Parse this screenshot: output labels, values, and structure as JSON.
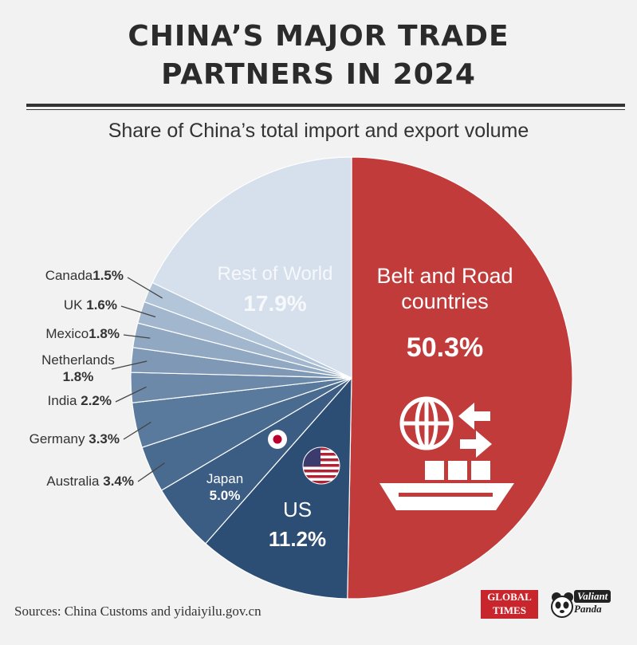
{
  "title_line1": "CHINA’S MAJOR TRADE",
  "title_line2": "PARTNERS IN 2024",
  "subtitle": "Share of China’s total import and export volume",
  "source": "Sources: China Customs and yidaiyilu.gov.cn",
  "logos": {
    "global_times_line1": "GLOBAL",
    "global_times_line2": "TIMES",
    "valiant_panda_line1": "Valiant",
    "valiant_panda_line2": "Panda"
  },
  "chart_data": {
    "type": "pie",
    "title": "CHINA’S MAJOR TRADE PARTNERS IN 2024",
    "subtitle": "Share of China’s total import and export volume",
    "unit": "%",
    "slices": [
      {
        "name": "Belt and Road countries",
        "value": 50.3,
        "label": "50.3%",
        "color": "#c23b3b"
      },
      {
        "name": "US",
        "value": 11.2,
        "label": "11.2%",
        "color": "#2d4e74"
      },
      {
        "name": "Japan",
        "value": 5.0,
        "label": "5.0%",
        "color": "#3b5d83"
      },
      {
        "name": "Australia",
        "value": 3.4,
        "label": "3.4%",
        "color": "#4a6b90"
      },
      {
        "name": "Germany",
        "value": 3.3,
        "label": "3.3%",
        "color": "#5a7a9d"
      },
      {
        "name": "India",
        "value": 2.2,
        "label": "2.2%",
        "color": "#6c89aa"
      },
      {
        "name": "Netherlands",
        "value": 1.8,
        "label": "1.8%",
        "color": "#7e98b6"
      },
      {
        "name": "Mexico",
        "value": 1.8,
        "label": "1.8%",
        "color": "#90a8c2"
      },
      {
        "name": "UK",
        "value": 1.6,
        "label": "1.6%",
        "color": "#a2b7cd"
      },
      {
        "name": "Canada",
        "value": 1.5,
        "label": "1.5%",
        "color": "#b3c6d9"
      },
      {
        "name": "Rest of World",
        "value": 17.9,
        "label": "17.9%",
        "color": "#d5e0ec"
      }
    ],
    "outside_labels": [
      {
        "name": "Canada",
        "text": "Canada",
        "value": "1.5%"
      },
      {
        "name": "UK",
        "text": "UK",
        "value": "1.6%"
      },
      {
        "name": "Mexico",
        "text": "Mexico",
        "value": "1.8%"
      },
      {
        "name": "Netherlands",
        "text": "Netherlands",
        "value": "1.8%"
      },
      {
        "name": "India",
        "text": "India",
        "value": "2.2%"
      },
      {
        "name": "Germany",
        "text": "Germany",
        "value": "3.3%"
      },
      {
        "name": "Australia",
        "text": "Australia",
        "value": "3.4%"
      }
    ],
    "inside_labels": {
      "belt_road_line1": "Belt and Road",
      "belt_road_line2": "countries",
      "belt_road_value": "50.3%",
      "rest_name": "Rest of World",
      "rest_value": "17.9%",
      "us_name": "US",
      "us_value": "11.2%",
      "japan_name": "Japan",
      "japan_value": "5.0%"
    },
    "icons": [
      "globe-icon",
      "arrows-icon",
      "cargo-ship-icon",
      "us-flag-icon",
      "japan-flag-icon"
    ]
  }
}
